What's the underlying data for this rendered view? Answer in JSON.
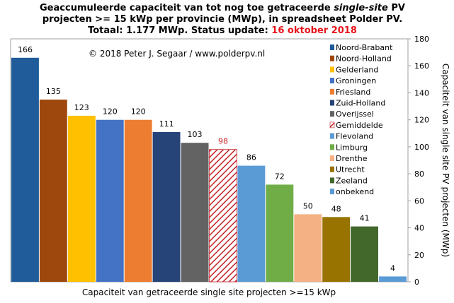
{
  "title": {
    "line1_prefix": "Geaccumuleerde capaciteit van tot nog toe getraceerde ",
    "line1_italic": "single-site",
    "line1_suffix": " PV",
    "line2": "projecten >= 15 kWp per provincie (MWp), in spreadsheet Polder PV.",
    "line3_prefix": "Totaal: 1.177 MWp. Status update: ",
    "line3_date": "16 oktober 2018"
  },
  "copyright": "© 2018 Peter J. Segaar / www.polderpv.nl",
  "colors": {
    "title_date": "#e8141b",
    "average_label": "#c42026",
    "hatch": "#c42026"
  },
  "chart_data": {
    "type": "bar",
    "categories": [
      "Noord-Brabant",
      "Noord-Holland",
      "Gelderland",
      "Groningen",
      "Friesland",
      "Zuid-Holland",
      "Overijssel",
      "Gemiddelde",
      "Flevoland",
      "Limburg",
      "Drenthe",
      "Utrecht",
      "Zeeland",
      "onbekend"
    ],
    "values": [
      166,
      135,
      123,
      120,
      120,
      111,
      103,
      98,
      86,
      72,
      50,
      48,
      41,
      4
    ],
    "colors": [
      "#1f5c99",
      "#9e480e",
      "#ffc000",
      "#4472c4",
      "#ed7d31",
      "#264478",
      "#636363",
      "hatch",
      "#5b9bd5",
      "#70ad47",
      "#f4b183",
      "#997300",
      "#43682b",
      "#5b9bd5"
    ],
    "xlabel": "Capaciteit van getraceerde single site projecten >=15 kWp",
    "ylabel": "Capaciteit van single site PV projecten (MWp)",
    "ylim": [
      0,
      180
    ],
    "yticks": [
      0,
      20,
      40,
      60,
      80,
      100,
      120,
      140,
      160,
      180
    ],
    "y_axis_side": "right",
    "grid": false,
    "legend": "top-right"
  }
}
